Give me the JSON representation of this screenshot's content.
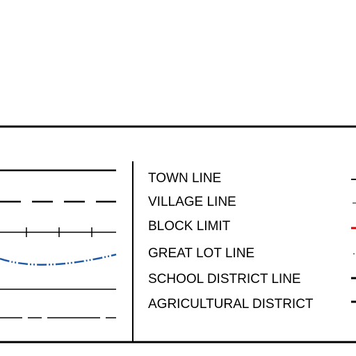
{
  "legend": {
    "labels": [
      "TOWN LINE",
      "VILLAGE LINE",
      "BLOCK LIMIT",
      "GREAT LOT LINE",
      "SCHOOL DISTRICT LINE",
      "AGRICULTURAL DISTRICT"
    ]
  }
}
